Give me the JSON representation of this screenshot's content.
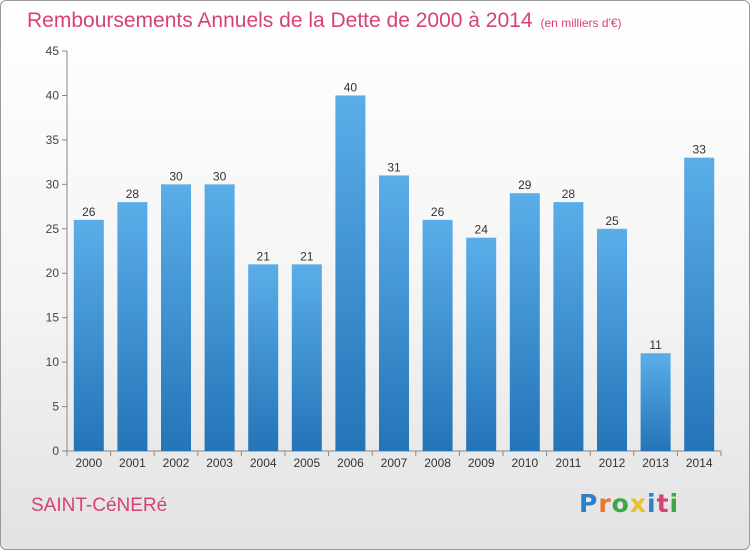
{
  "header": {
    "title": "Remboursements Annuels de la Dette de 2000 à 2014",
    "unit": "(en milliers d'€)"
  },
  "footer": {
    "commune": "SAINT-CéNERé",
    "logo_text": "Proxiti"
  },
  "colors": {
    "title": "#d8407a",
    "bar_light": "#5aaee8",
    "bar_dark": "#2474b8",
    "logo": [
      "#2f7fc4",
      "#e8762b",
      "#39a845",
      "#e8c22b",
      "#2f7fc4",
      "#d8407a",
      "#39a845"
    ]
  },
  "chart_data": {
    "type": "bar",
    "title": "Remboursements Annuels de la Dette de 2000 à 2014",
    "categories": [
      "2000",
      "2001",
      "2002",
      "2003",
      "2004",
      "2005",
      "2006",
      "2007",
      "2008",
      "2009",
      "2010",
      "2011",
      "2012",
      "2013",
      "2014"
    ],
    "values": [
      26,
      28,
      30,
      30,
      21,
      21,
      40,
      31,
      26,
      24,
      29,
      28,
      25,
      11,
      33
    ],
    "ylim": [
      0,
      45
    ],
    "yticks": [
      0,
      5,
      10,
      15,
      20,
      25,
      30,
      35,
      40,
      45
    ],
    "grid": false,
    "data_labels": true
  }
}
